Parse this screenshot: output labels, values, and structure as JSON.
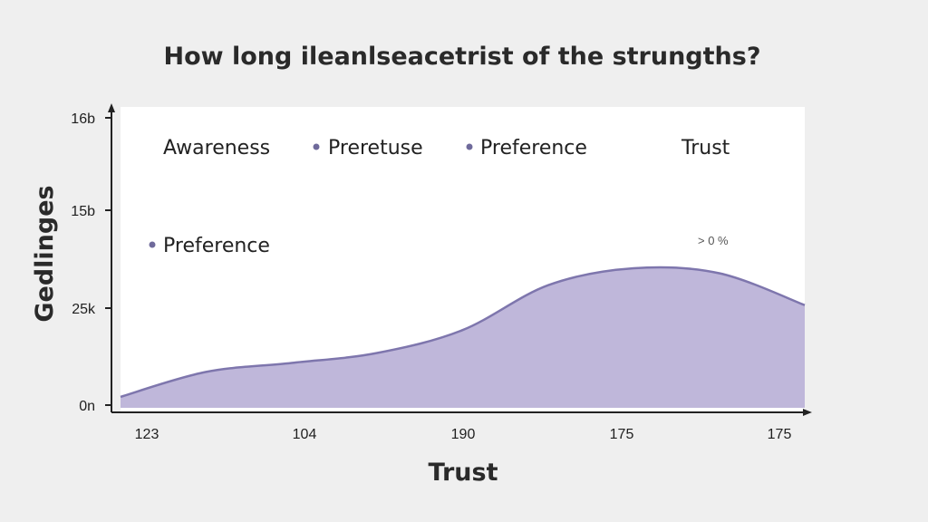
{
  "chart_data": {
    "type": "area",
    "title": "How long ileanlseacetrist of the strungths?",
    "xlabel": "Trust",
    "ylabel": "Gedlinges",
    "x_ticks": [
      "123",
      "104",
      "190",
      "175",
      "175"
    ],
    "y_ticks": [
      "0n",
      "25k",
      "15b",
      "16b"
    ],
    "legend_top": [
      "Awareness",
      "Preretuse",
      "Preference",
      "Trust"
    ],
    "legend_inline": "Preference",
    "annotation": "> 0 %",
    "series": [
      {
        "x": [
          0,
          0.5,
          1,
          1.5,
          2,
          2.5,
          3,
          3.5,
          4
        ],
        "values": [
          0.11,
          0.36,
          0.45,
          0.55,
          0.78,
          1.23,
          1.4,
          1.35,
          1.03
        ]
      }
    ],
    "colors": {
      "area_fill": "#bfb7da",
      "area_line": "#7e76ad",
      "legend_dot": "#6f6a9b",
      "axis": "#222222",
      "plot_bg": "#ffffff"
    },
    "grid": false
  }
}
